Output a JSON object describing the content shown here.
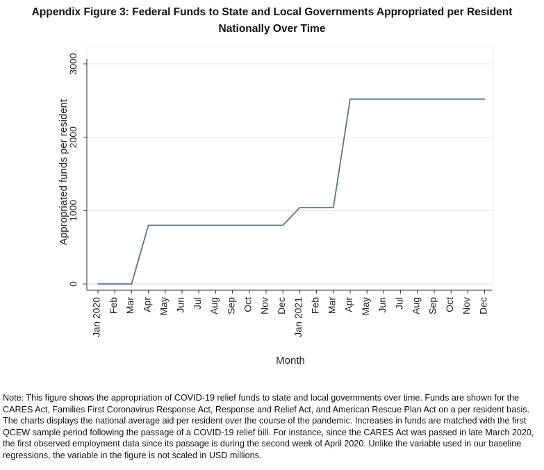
{
  "title": {
    "line1": "Appendix Figure 3: Federal Funds to State and Local Governments Appropriated per Resident",
    "line2": "Nationally Over Time"
  },
  "note": "Note: This figure shows the appropriation of COVID-19 relief funds to state and local governments over time. Funds are shown for the CARES Act, Families First Coronavirus Response Act, Response and Relief Act, and American Rescue Plan Act on a per resident basis. The charts displays the national average aid per resident over the course of the pandemic. Increases in funds are matched with the first QCEW sample period following the passage of a COVID-19 relief bill. For instance, since the CARES Act was passed in late March 2020, the first observed employment data since its passage is during the second week of April 2020. Unlike the variable used in our baseline regressions, the variable in the figure is not scaled in USD millions.",
  "chart_data": {
    "type": "line",
    "xlabel": "Month",
    "ylabel": "Appropriated funds per resident",
    "ylim": [
      0,
      3000
    ],
    "yticks": [
      "0",
      "1000",
      "2000",
      "3000"
    ],
    "grid": true,
    "categories": [
      "Jan 2020",
      "Feb",
      "Mar",
      "Apr",
      "May",
      "Jun",
      "Jul",
      "Aug",
      "Sep",
      "Oct",
      "Nov",
      "Dec",
      "Jan 2021",
      "Feb",
      "Mar",
      "Apr",
      "May",
      "Jun",
      "Jul",
      "Aug",
      "Sep",
      "Oct",
      "Nov",
      "Dec"
    ],
    "values": [
      0,
      0,
      0,
      800,
      800,
      800,
      800,
      800,
      800,
      800,
      800,
      800,
      1040,
      1040,
      1040,
      2520,
      2520,
      2520,
      2520,
      2520,
      2520,
      2520,
      2520,
      2520
    ],
    "line_color": "#5a7388"
  }
}
